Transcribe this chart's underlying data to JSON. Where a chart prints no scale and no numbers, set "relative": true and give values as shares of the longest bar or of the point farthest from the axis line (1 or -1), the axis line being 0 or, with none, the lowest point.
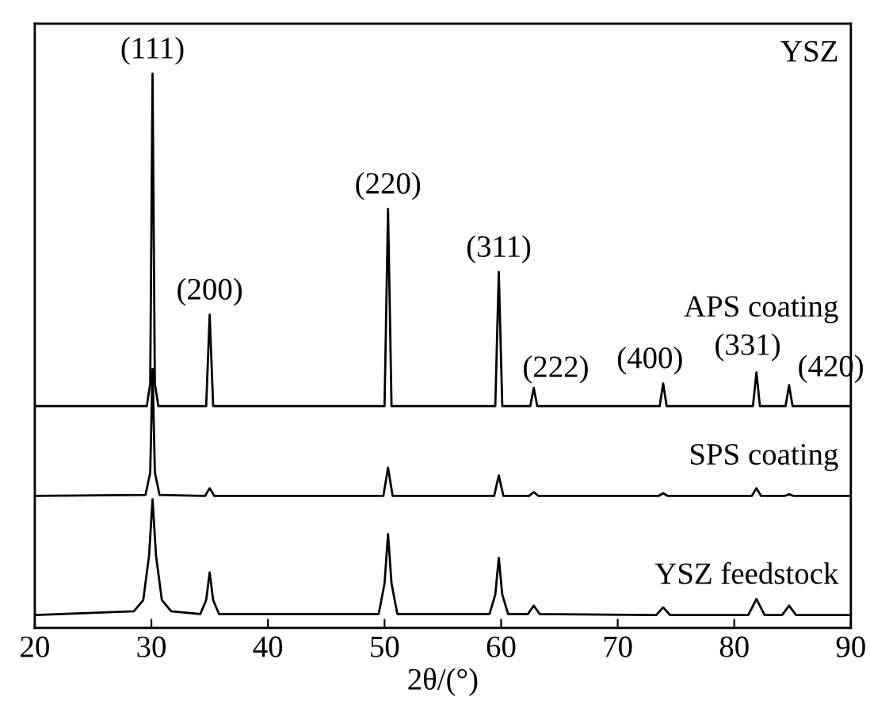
{
  "chart_data": {
    "type": "line",
    "relative": true,
    "xlabel": "2θ/(°)",
    "xlim": [
      20,
      90
    ],
    "xticks": [
      20,
      30,
      40,
      50,
      60,
      70,
      80,
      90
    ],
    "legend": false,
    "grid": false,
    "marker": "none",
    "line_style": "solid",
    "series": [
      {
        "name": "APS coating",
        "color": "#000000",
        "x": [
          20,
          29.6,
          29.9,
          30.1,
          30.3,
          30.6,
          34.7,
          35.0,
          35.3,
          50.0,
          50.3,
          50.6,
          59.5,
          59.8,
          60.1,
          62.5,
          62.8,
          63.1,
          73.6,
          73.9,
          74.2,
          81.6,
          81.9,
          82.2,
          84.4,
          84.7,
          85.0,
          90
        ],
        "values": [
          0.4,
          0.4,
          0.44,
          1.0,
          0.44,
          0.4,
          0.4,
          0.565,
          0.4,
          0.4,
          0.756,
          0.4,
          0.4,
          0.642,
          0.4,
          0.4,
          0.433,
          0.4,
          0.4,
          0.441,
          0.4,
          0.4,
          0.461,
          0.4,
          0.4,
          0.438,
          0.4,
          0.4
        ]
      },
      {
        "name": "SPS coating",
        "color": "#000000",
        "x": [
          20,
          29.5,
          29.9,
          30.1,
          30.3,
          30.7,
          34.6,
          35.0,
          35.4,
          49.9,
          50.3,
          50.7,
          59.4,
          59.8,
          60.2,
          62.4,
          62.8,
          63.2,
          73.5,
          73.9,
          74.3,
          81.5,
          81.9,
          82.3,
          84.3,
          84.7,
          85.1,
          90
        ],
        "values": [
          0.238,
          0.24,
          0.28,
          0.467,
          0.28,
          0.24,
          0.238,
          0.252,
          0.238,
          0.238,
          0.289,
          0.238,
          0.238,
          0.275,
          0.238,
          0.238,
          0.245,
          0.238,
          0.238,
          0.243,
          0.238,
          0.238,
          0.252,
          0.238,
          0.238,
          0.241,
          0.238,
          0.238
        ]
      },
      {
        "name": "YSZ feedstock",
        "color": "#000000",
        "x": [
          20,
          28.5,
          29.3,
          29.8,
          30.1,
          30.4,
          30.9,
          31.7,
          34.2,
          34.7,
          35.0,
          35.3,
          35.8,
          49.5,
          50.0,
          50.3,
          50.6,
          51.1,
          59.0,
          59.5,
          59.8,
          60.1,
          60.6,
          62.3,
          62.8,
          63.3,
          73.3,
          73.9,
          74.5,
          81.2,
          81.9,
          82.6,
          84.1,
          84.7,
          85.3,
          90
        ],
        "values": [
          0.023,
          0.03,
          0.05,
          0.13,
          0.232,
          0.13,
          0.05,
          0.03,
          0.025,
          0.05,
          0.1,
          0.05,
          0.025,
          0.025,
          0.08,
          0.169,
          0.08,
          0.025,
          0.025,
          0.06,
          0.126,
          0.06,
          0.025,
          0.025,
          0.04,
          0.025,
          0.023,
          0.037,
          0.023,
          0.023,
          0.052,
          0.023,
          0.023,
          0.04,
          0.023,
          0.023
        ]
      }
    ],
    "annotations": [
      "YSZ",
      {
        "text": "(111)",
        "x": 30.1,
        "y": 1.0
      },
      {
        "text": "(200)",
        "x": 35.0,
        "y": 0.565
      },
      {
        "text": "(220)",
        "x": 50.3,
        "y": 0.756
      },
      {
        "text": "(311)",
        "x": 59.8,
        "y": 0.642
      },
      {
        "text": "(222)",
        "x": 62.8,
        "y": 0.433
      },
      {
        "text": "(400)",
        "x": 73.9,
        "y": 0.441
      },
      {
        "text": "(331)",
        "x": 81.9,
        "y": 0.461
      },
      {
        "text": "(420)",
        "x": 84.7,
        "y": 0.438
      }
    ]
  }
}
